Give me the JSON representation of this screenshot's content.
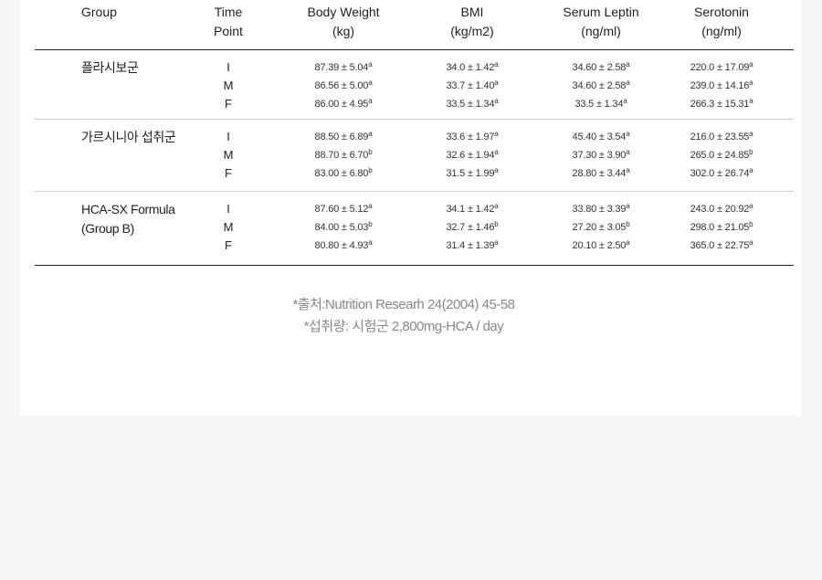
{
  "headers": {
    "group": "Group",
    "time_point": [
      "Time",
      "Point"
    ],
    "body_weight": [
      "Body Weight",
      "(kg)"
    ],
    "bmi": [
      "BMI",
      "(kg/m2)"
    ],
    "serum_leptin": [
      "Serum Leptin",
      "(ng/ml)"
    ],
    "serotonin": [
      "Serotonin",
      "(ng/ml)"
    ]
  },
  "groups": [
    {
      "name": [
        "플라시보군"
      ],
      "rows": [
        {
          "tp": "I",
          "bw": [
            "87.39 ± 5.04",
            "a"
          ],
          "bmi": [
            "34.0 ± 1.42",
            "a"
          ],
          "lep": [
            "34.60 ± 2.58",
            "a"
          ],
          "ser": [
            "220.0 ± 17.09",
            "a"
          ]
        },
        {
          "tp": "M",
          "bw": [
            "86.56 ± 5.00",
            "a"
          ],
          "bmi": [
            "33.7 ± 1.40",
            "a"
          ],
          "lep": [
            "34.60 ± 2.58",
            "a"
          ],
          "ser": [
            "239.0 ± 14.16",
            "a"
          ]
        },
        {
          "tp": "F",
          "bw": [
            "86.00 ± 4.95",
            "a"
          ],
          "bmi": [
            "33.5 ± 1.34",
            "a"
          ],
          "lep": [
            "33.5 ± 1.34",
            "a"
          ],
          "ser": [
            "266.3 ± 15.31",
            "a"
          ]
        }
      ]
    },
    {
      "name": [
        "가르시니아 섭취군"
      ],
      "rows": [
        {
          "tp": "I",
          "bw": [
            "88.50 ± 6.89",
            "a"
          ],
          "bmi": [
            "33.6 ± 1.97",
            "a"
          ],
          "lep": [
            "45.40 ± 3.54",
            "a"
          ],
          "ser": [
            "216.0 ± 23.55",
            "a"
          ]
        },
        {
          "tp": "M",
          "bw": [
            "88.70 ± 6.70",
            "b"
          ],
          "bmi": [
            "32.6 ± 1.94",
            "a"
          ],
          "lep": [
            "37.30 ± 3.90",
            "a"
          ],
          "ser": [
            "265.0 ± 24.85",
            "b"
          ]
        },
        {
          "tp": "F",
          "bw": [
            "83.00 ± 6.80",
            "b"
          ],
          "bmi": [
            "31.5 ± 1.99",
            "a"
          ],
          "lep": [
            "28.80 ± 3.44",
            "a"
          ],
          "ser": [
            "302.0 ± 26.74",
            "a"
          ]
        }
      ]
    },
    {
      "name": [
        "HCA-SX Formula",
        "(Group B)"
      ],
      "rows": [
        {
          "tp": "I",
          "bw": [
            "87.60 ± 5.12",
            "a"
          ],
          "bmi": [
            "34.1 ± 1.42",
            "a"
          ],
          "lep": [
            "33.80 ± 3.39",
            "a"
          ],
          "ser": [
            "243.0 ± 20.92",
            "a"
          ]
        },
        {
          "tp": "M",
          "bw": [
            "84.00 ± 5.03",
            "b"
          ],
          "bmi": [
            "32.7 ± 1.46",
            "b"
          ],
          "lep": [
            "27.20 ± 3.05",
            "b"
          ],
          "ser": [
            "298.0 ± 21.05",
            "b"
          ]
        },
        {
          "tp": "F",
          "bw": [
            "80.80 ± 4.93",
            "a"
          ],
          "bmi": [
            "31.4 ± 1.39",
            "a"
          ],
          "lep": [
            "20.10 ± 2.50",
            "a"
          ],
          "ser": [
            "365.0 ± 22.75",
            "a"
          ]
        }
      ]
    }
  ],
  "notes": [
    "*출처:Nutrition Researh 24(2004) 45-58",
    "*섭취량: 시험군 2,800mg-HCA / day"
  ]
}
